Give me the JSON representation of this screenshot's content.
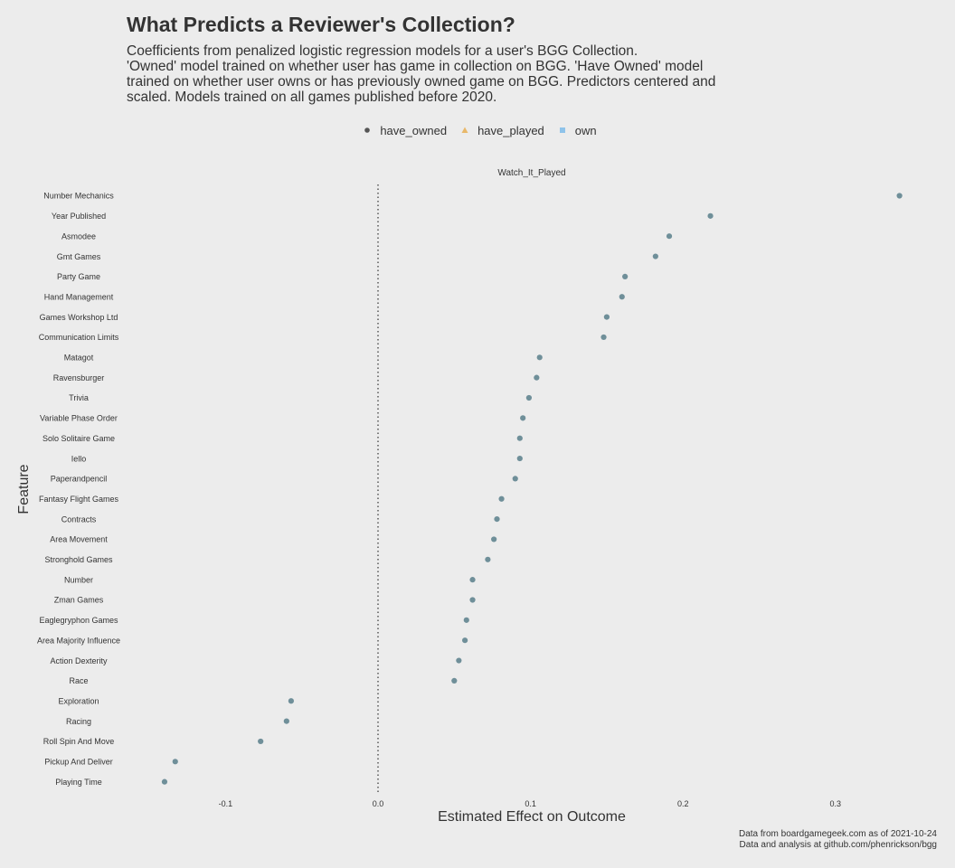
{
  "header": {
    "title": "What Predicts a Reviewer's Collection?",
    "subtitle_lines": [
      "Coefficients from penalized logistic regression models for a user's BGG Collection.",
      "'Owned' model trained on whether user has game in collection on BGG. 'Have Owned' model",
      "trained on whether user owns or has previously owned game on BGG. Predictors centered and",
      "scaled. Models trained on all games published before 2020."
    ]
  },
  "legend": [
    {
      "label": "have_owned",
      "shape": "circle",
      "color": "#555555"
    },
    {
      "label": "have_played",
      "shape": "triangle",
      "color": "#e8b86a"
    },
    {
      "label": "own",
      "shape": "square",
      "color": "#8fc3ea"
    }
  ],
  "caption": {
    "line1": "Data from boardgamegeek.com as of 2021-10-24",
    "line2": "Data and analysis at github.com/phenrickson/bgg"
  },
  "chart_data": {
    "type": "scatter",
    "facet": "Watch_It_Played",
    "xlabel": "Estimated Effect on Outcome",
    "ylabel": "Feature",
    "xlim": [
      -0.17,
      0.35
    ],
    "x_ticks": [
      -0.1,
      0.0,
      0.1,
      0.2,
      0.3
    ],
    "x_tick_labels": [
      "-0.1",
      "0.0",
      "0.1",
      "0.2",
      "0.3"
    ],
    "reference_line": 0,
    "point_color": "#6f8f99",
    "points": [
      {
        "feature": "Number Mechanics",
        "value": 0.342
      },
      {
        "feature": "Year Published",
        "value": 0.218
      },
      {
        "feature": "Asmodee",
        "value": 0.191
      },
      {
        "feature": "Gmt Games",
        "value": 0.182
      },
      {
        "feature": "Party Game",
        "value": 0.162
      },
      {
        "feature": "Hand Management",
        "value": 0.16
      },
      {
        "feature": "Games Workshop Ltd",
        "value": 0.15
      },
      {
        "feature": "Communication Limits",
        "value": 0.148
      },
      {
        "feature": "Matagot",
        "value": 0.106
      },
      {
        "feature": "Ravensburger",
        "value": 0.104
      },
      {
        "feature": "Trivia",
        "value": 0.099
      },
      {
        "feature": "Variable Phase Order",
        "value": 0.095
      },
      {
        "feature": "Solo Solitaire Game",
        "value": 0.093
      },
      {
        "feature": "Iello",
        "value": 0.093
      },
      {
        "feature": "Paperandpencil",
        "value": 0.09
      },
      {
        "feature": "Fantasy Flight Games",
        "value": 0.081
      },
      {
        "feature": "Contracts",
        "value": 0.078
      },
      {
        "feature": "Area Movement",
        "value": 0.076
      },
      {
        "feature": "Stronghold Games",
        "value": 0.072
      },
      {
        "feature": "Number",
        "value": 0.062
      },
      {
        "feature": "Zman Games",
        "value": 0.062
      },
      {
        "feature": "Eaglegryphon Games",
        "value": 0.058
      },
      {
        "feature": "Area Majority Influence",
        "value": 0.057
      },
      {
        "feature": "Action Dexterity",
        "value": 0.053
      },
      {
        "feature": "Race",
        "value": 0.05
      },
      {
        "feature": "Exploration",
        "value": -0.057
      },
      {
        "feature": "Racing",
        "value": -0.06
      },
      {
        "feature": "Roll Spin And Move",
        "value": -0.077
      },
      {
        "feature": "Pickup And Deliver",
        "value": -0.133
      },
      {
        "feature": "Playing Time",
        "value": -0.14
      }
    ]
  }
}
